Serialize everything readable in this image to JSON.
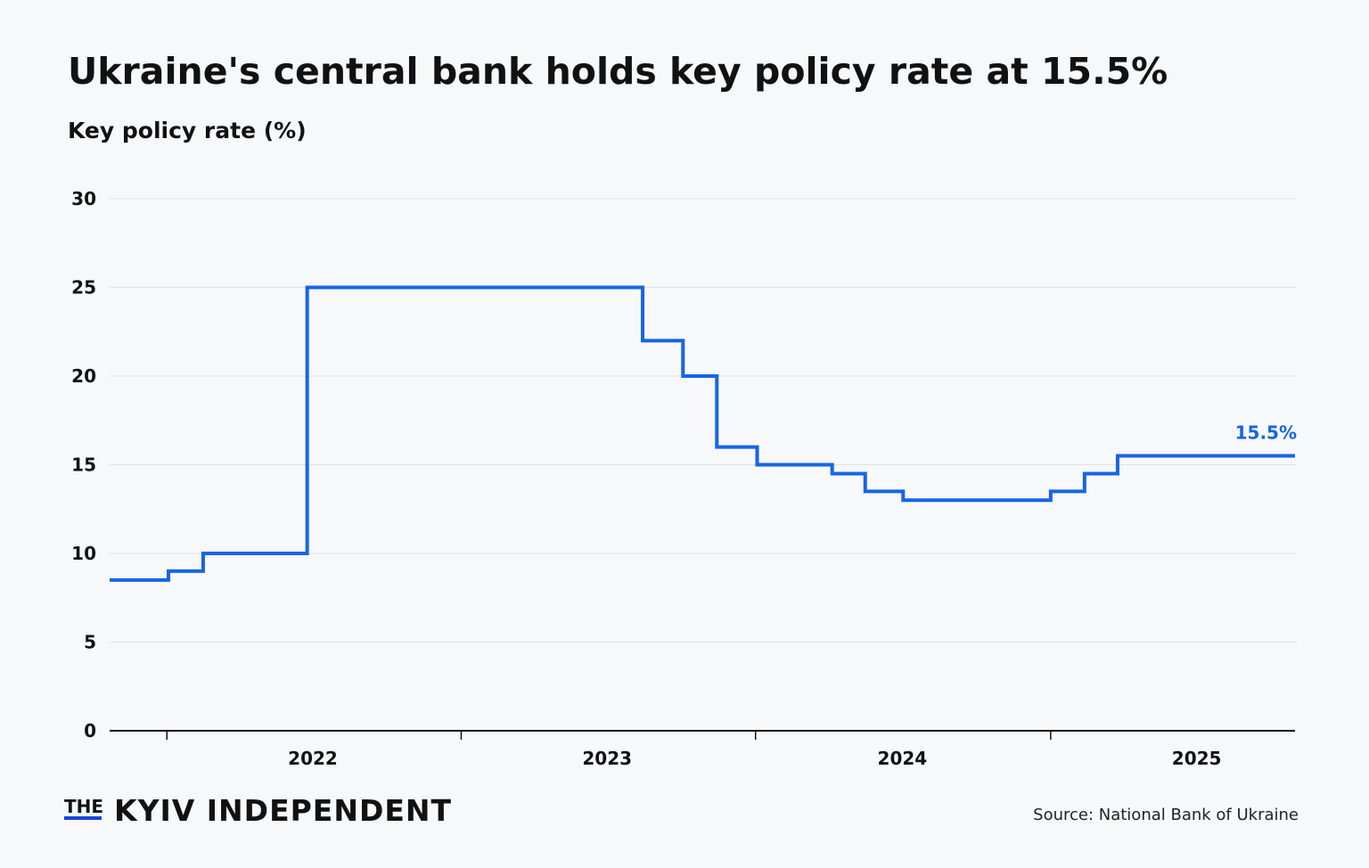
{
  "chart_data": {
    "type": "line",
    "step": true,
    "title": "Ukraine's central bank holds key policy rate at 15.5%",
    "ylabel": "Key policy rate (%)",
    "xlabel": "",
    "ylim": [
      0,
      30
    ],
    "yticks": [
      0,
      5,
      10,
      15,
      20,
      25,
      30
    ],
    "xlim": [
      "2021-10-22",
      "2025-10-31"
    ],
    "xticks": [
      "2022-01-01",
      "2023-01-01",
      "2024-01-01",
      "2025-01-01",
      "2026-01-01"
    ],
    "xtick_labels": [
      {
        "label": "2022",
        "year": 2022
      },
      {
        "label": "2023",
        "year": 2023
      },
      {
        "label": "2024",
        "year": 2024
      },
      {
        "label": "2025",
        "year": 2025
      }
    ],
    "grid": true,
    "line_color": "#1565e6",
    "points": [
      {
        "date": "2021-10-22",
        "value": 8.5
      },
      {
        "date": "2022-01-03",
        "value": 9
      },
      {
        "date": "2022-02-15",
        "value": 10
      },
      {
        "date": "2022-06-24",
        "value": 25
      },
      {
        "date": "2023-08-14",
        "value": 22
      },
      {
        "date": "2023-10-03",
        "value": 20
      },
      {
        "date": "2023-11-14",
        "value": 16
      },
      {
        "date": "2024-01-03",
        "value": 15
      },
      {
        "date": "2024-04-05",
        "value": 14.5
      },
      {
        "date": "2024-05-16",
        "value": 13.5
      },
      {
        "date": "2024-07-02",
        "value": 13
      },
      {
        "date": "2025-01-01",
        "value": 13.5
      },
      {
        "date": "2025-02-12",
        "value": 14.5
      },
      {
        "date": "2025-03-25",
        "value": 15.5
      },
      {
        "date": "2025-10-31",
        "value": 15.5
      }
    ],
    "annotation": {
      "text": "15.5%",
      "date": "2025-10-31",
      "value": 15.5
    }
  },
  "footer": {
    "logo_the": "THE",
    "logo_main": "KYIV INDEPENDENT",
    "logo_accent": "#1a44d6",
    "source": "Source: National Bank of Ukraine"
  }
}
